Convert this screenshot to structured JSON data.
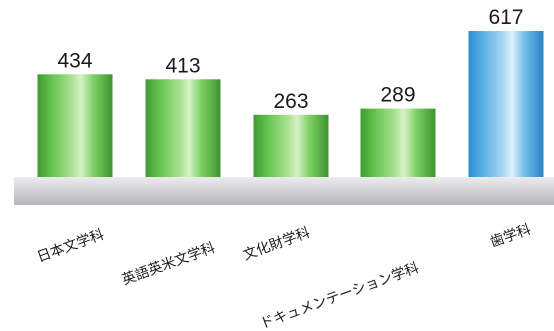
{
  "chart_data": {
    "type": "bar",
    "categories": [
      "日本文学科",
      "英語英米文学科",
      "文化財学科",
      "ドキュメンテーション学科",
      "歯学科"
    ],
    "values": [
      434,
      413,
      263,
      289,
      617
    ],
    "data_labels": [
      "434",
      "413",
      "263",
      "289",
      "617"
    ],
    "highlighted_category": "歯学科",
    "colors": {
      "default_bar": "#5cbf4a",
      "highlight_bar": "#4aa6e0",
      "floor": "#c8c8cc"
    },
    "title": "",
    "xlabel": "",
    "ylabel": "",
    "grid": false,
    "legend": "none"
  }
}
